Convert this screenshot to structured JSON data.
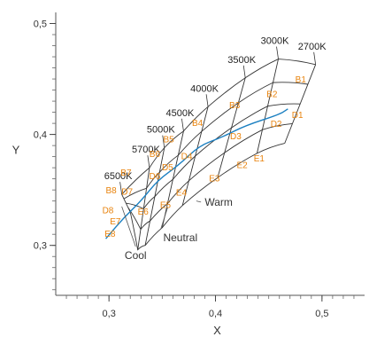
{
  "chart_data": {
    "type": "diagram",
    "xlabel": "X",
    "ylabel": "Y",
    "xlim": [
      0.25,
      0.54
    ],
    "ylim": [
      0.255,
      0.51
    ],
    "x_ticks": [
      {
        "value": 0.3,
        "label": "0,3"
      },
      {
        "value": 0.4,
        "label": "0,4"
      },
      {
        "value": 0.5,
        "label": "0,5"
      }
    ],
    "y_ticks": [
      {
        "value": 0.3,
        "label": "0,3"
      },
      {
        "value": 0.4,
        "label": "0,4"
      },
      {
        "value": 0.5,
        "label": "0,5"
      }
    ],
    "grid": false,
    "colors": {
      "planckian_locus": "#1a7fc1",
      "bin_labels": "#e8830d",
      "grid_lines": "#333333"
    },
    "cct_lines": [
      {
        "label": "6500K",
        "top": [
          0.312,
          0.346
        ],
        "bottom": [
          0.32,
          0.33
        ]
      },
      {
        "label": "5700K",
        "top": [
          0.338,
          0.37
        ],
        "bottom": [
          0.327,
          0.296
        ]
      },
      {
        "label": "5000K",
        "top": [
          0.352,
          0.388
        ],
        "bottom": [
          0.334,
          0.3
        ]
      },
      {
        "label": "4500K",
        "top": [
          0.37,
          0.403
        ],
        "bottom": [
          0.35,
          0.316
        ]
      },
      {
        "label": "4000K",
        "top": [
          0.393,
          0.425
        ],
        "bottom": [
          0.369,
          0.336
        ]
      },
      {
        "label": "3500K",
        "top": [
          0.428,
          0.451
        ],
        "bottom": [
          0.402,
          0.361
        ]
      },
      {
        "label": "3000K",
        "top": [
          0.459,
          0.468
        ],
        "bottom": [
          0.439,
          0.383
        ]
      },
      {
        "label": "2700K",
        "top": [
          0.494,
          0.463
        ],
        "bottom": [
          0.465,
          0.392
        ]
      }
    ],
    "planckian_locus": [
      [
        0.297,
        0.306
      ],
      [
        0.313,
        0.324
      ],
      [
        0.33,
        0.34
      ],
      [
        0.346,
        0.359
      ],
      [
        0.365,
        0.372
      ],
      [
        0.385,
        0.39
      ],
      [
        0.405,
        0.397
      ],
      [
        0.428,
        0.408
      ],
      [
        0.46,
        0.418
      ],
      [
        0.468,
        0.423
      ]
    ],
    "bins": [
      {
        "label": "B1",
        "x": 0.48,
        "y": 0.45
      },
      {
        "label": "B2",
        "x": 0.453,
        "y": 0.437
      },
      {
        "label": "B3",
        "x": 0.418,
        "y": 0.427
      },
      {
        "label": "B4",
        "x": 0.383,
        "y": 0.411
      },
      {
        "label": "B5",
        "x": 0.356,
        "y": 0.396
      },
      {
        "label": "B6",
        "x": 0.343,
        "y": 0.383
      },
      {
        "label": "B7",
        "x": 0.316,
        "y": 0.366
      },
      {
        "label": "B8",
        "x": 0.302,
        "y": 0.35
      },
      {
        "label": "D1",
        "x": 0.477,
        "y": 0.418
      },
      {
        "label": "D2",
        "x": 0.457,
        "y": 0.41
      },
      {
        "label": "D3",
        "x": 0.419,
        "y": 0.399
      },
      {
        "label": "D4",
        "x": 0.373,
        "y": 0.381
      },
      {
        "label": "D5",
        "x": 0.355,
        "y": 0.371
      },
      {
        "label": "D6",
        "x": 0.343,
        "y": 0.363
      },
      {
        "label": "D7",
        "x": 0.317,
        "y": 0.349
      },
      {
        "label": "D8",
        "x": 0.299,
        "y": 0.332
      },
      {
        "label": "E1",
        "x": 0.441,
        "y": 0.379
      },
      {
        "label": "E2",
        "x": 0.425,
        "y": 0.373
      },
      {
        "label": "E3",
        "x": 0.399,
        "y": 0.361
      },
      {
        "label": "E4",
        "x": 0.368,
        "y": 0.348
      },
      {
        "label": "E5",
        "x": 0.353,
        "y": 0.337
      },
      {
        "label": "E6",
        "x": 0.332,
        "y": 0.331
      },
      {
        "label": "E7",
        "x": 0.306,
        "y": 0.322
      },
      {
        "label": "E8",
        "x": 0.301,
        "y": 0.311
      }
    ],
    "region_labels": [
      {
        "label": "Cool",
        "x": 0.325,
        "y": 0.291
      },
      {
        "label": "Neutral",
        "x": 0.367,
        "y": 0.307
      },
      {
        "label": "Warm",
        "x": 0.403,
        "y": 0.339
      }
    ]
  }
}
